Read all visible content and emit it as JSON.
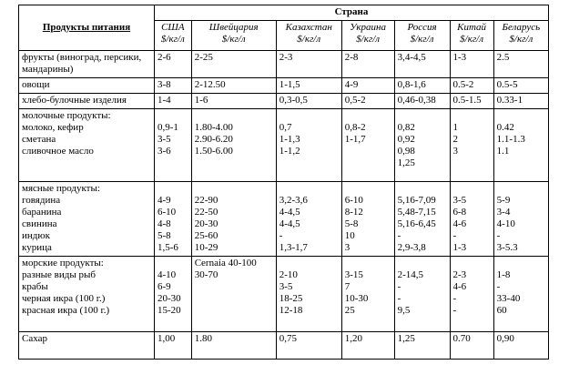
{
  "table": {
    "header": {
      "product": "Продукты питания",
      "country": "Страна",
      "countries": [
        {
          "name": "США",
          "unit": "$/кг/л"
        },
        {
          "name": "Швейцария",
          "unit": "$/кг/л"
        },
        {
          "name": "Казахстан",
          "unit": "$/кг/л"
        },
        {
          "name": "Украина",
          "unit": "$/кг/л"
        },
        {
          "name": "Россия",
          "unit": "$/кг/л"
        },
        {
          "name": "Китай",
          "unit": "$/кг/л"
        },
        {
          "name": "Беларусь",
          "unit": "$/кг/л"
        }
      ]
    },
    "rows": [
      {
        "label": [
          "фрукты (виноград, персики, мандарины)"
        ],
        "cells": [
          [
            "2-6"
          ],
          [
            "2-25"
          ],
          [
            "2-3"
          ],
          [
            "2-8"
          ],
          [
            "3,4-4,5"
          ],
          [
            "1-3"
          ],
          [
            "2.5"
          ]
        ]
      },
      {
        "label": [
          "овощи"
        ],
        "cells": [
          [
            "3-8"
          ],
          [
            "2-12.50"
          ],
          [
            "1-1,5"
          ],
          [
            "4-9"
          ],
          [
            "0,8-1,6"
          ],
          [
            "0.5-2"
          ],
          [
            "0.5-5"
          ]
        ]
      },
      {
        "label": [
          "хлебо-булочные изделия"
        ],
        "cells": [
          [
            "1-4"
          ],
          [
            "1-6"
          ],
          [
            "0,3-0,5"
          ],
          [
            "0,5-2"
          ],
          [
            "0,46-0,38"
          ],
          [
            "0.5-1.5"
          ],
          [
            "0.33-1"
          ]
        ]
      },
      {
        "label": [
          "молочные продукты:",
          "молоко, кефир",
          "сметана",
          "сливочное масло"
        ],
        "cells": [
          [
            "0,9-1",
            "3-5",
            "3-6"
          ],
          [
            "1.80-4.00",
            "2.90-6.20",
            "1.50-6.00"
          ],
          [
            "0,7",
            "1-1,3",
            "1-1,2"
          ],
          [
            "0,8-2",
            "1-1,7"
          ],
          [
            "0,82",
            "0,92",
            "0,98",
            "1,25"
          ],
          [
            "1",
            "2",
            "3"
          ],
          [
            "0.42",
            "1.1-1.3",
            "1.1"
          ]
        ]
      },
      {
        "label": [
          "мясные продукты:",
          "говядина",
          "баранина",
          "свинина",
          "индюк",
          "курица"
        ],
        "cells": [
          [
            "4-9",
            "6-10",
            "4-8",
            "5-8",
            "1,5-6"
          ],
          [
            "22-90",
            "22-50",
            "20-30",
            "25-60",
            "10-29"
          ],
          [
            "3,2-3,6",
            "4-4,5",
            "4-4,5",
            "-",
            "1,3-1,7"
          ],
          [
            "6-10",
            "8-12",
            "5-8",
            "10",
            "3"
          ],
          [
            "5,16-7,09",
            "5,48-7,15",
            "5,16-6,45",
            "-",
            "2,9-3,8"
          ],
          [
            "3-5",
            "6-8",
            "4-6",
            "-",
            "1-3"
          ],
          [
            "5-9",
            "3-4",
            "4-10",
            "-",
            "3-5.3"
          ]
        ]
      },
      {
        "label": [
          "морские продукты:",
          "разные виды рыб",
          "крабы",
          "черная икра (100 г.)",
          "красная икра (100 г.)"
        ],
        "cells": [
          [
            "4-10",
            "6-9",
            "20-30",
            "15-20"
          ],
          [
            "Cernaia 40-100",
            "30-70"
          ],
          [
            "2-10",
            "3-5",
            "18-25",
            "12-18"
          ],
          [
            "3-15",
            "7",
            "10-30",
            "25"
          ],
          [
            "2-14,5",
            "-",
            "-",
            "9,5"
          ],
          [
            "2-3",
            "4-6",
            "-",
            "-"
          ],
          [
            "1-8",
            "-",
            "33-40",
            "60"
          ]
        ]
      },
      {
        "label": [
          "Сахар"
        ],
        "cells": [
          [
            "1,00"
          ],
          [
            "1.80"
          ],
          [
            "0,75"
          ],
          [
            "1,20"
          ],
          [
            "1,25"
          ],
          [
            "0.70"
          ],
          [
            "0,90"
          ]
        ]
      }
    ]
  }
}
